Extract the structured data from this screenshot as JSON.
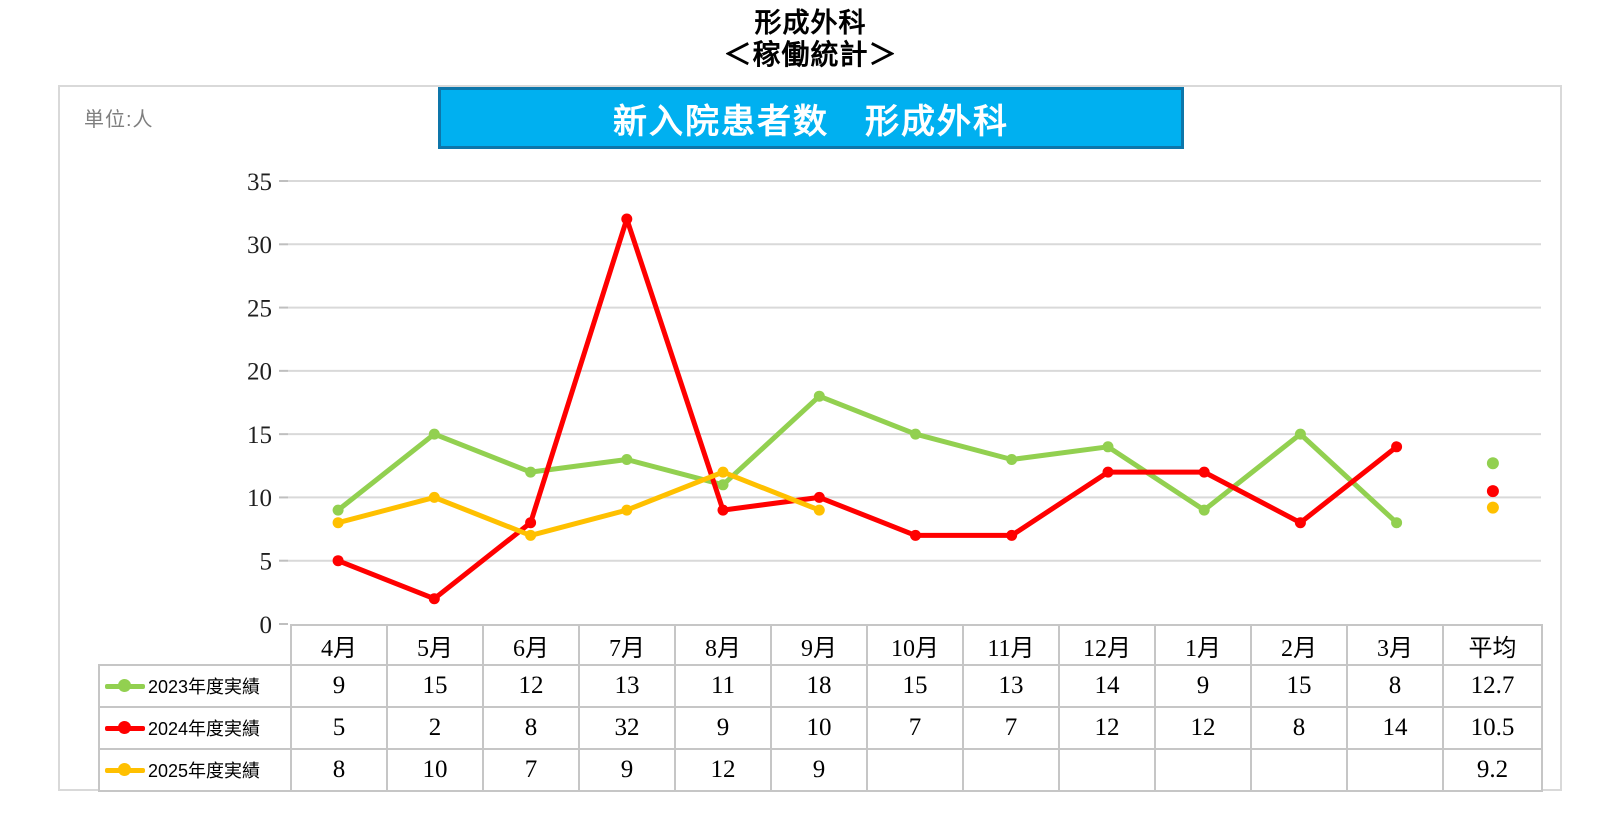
{
  "page": {
    "title_line1": "形成外科",
    "title_line2": "＜稼働統計＞"
  },
  "panel": {
    "unit_label": "単位:人"
  },
  "banner": {
    "title": "新入院患者数　形成外科",
    "fill_color": "#00b0f0",
    "border_color": "#0d76aa",
    "text_color": "#ffffff"
  },
  "chart_data": {
    "type": "line",
    "title": "新入院患者数　形成外科",
    "ylabel": "単位:人",
    "ylim": [
      0,
      35
    ],
    "ytick_step": 5,
    "grid": true,
    "gridline_color": "#d9d9d9",
    "tick_color": "#bfbfbf",
    "legend_position": "table-rows-left",
    "categories": [
      "4月",
      "5月",
      "6月",
      "7月",
      "8月",
      "9月",
      "10月",
      "11月",
      "12月",
      "1月",
      "2月",
      "3月"
    ],
    "average_label": "平均",
    "series": [
      {
        "name": "2023年度実績",
        "color": "#92d050",
        "values": [
          9,
          15,
          12,
          13,
          11,
          18,
          15,
          13,
          14,
          9,
          15,
          8
        ],
        "average": 12.7
      },
      {
        "name": "2024年度実績",
        "color": "#ff0000",
        "values": [
          5,
          2,
          8,
          32,
          9,
          10,
          7,
          7,
          12,
          12,
          8,
          14
        ],
        "average": 10.5
      },
      {
        "name": "2025年度実績",
        "color": "#ffc000",
        "values": [
          8,
          10,
          7,
          9,
          12,
          9,
          null,
          null,
          null,
          null,
          null,
          null
        ],
        "average": 9.2
      }
    ]
  }
}
